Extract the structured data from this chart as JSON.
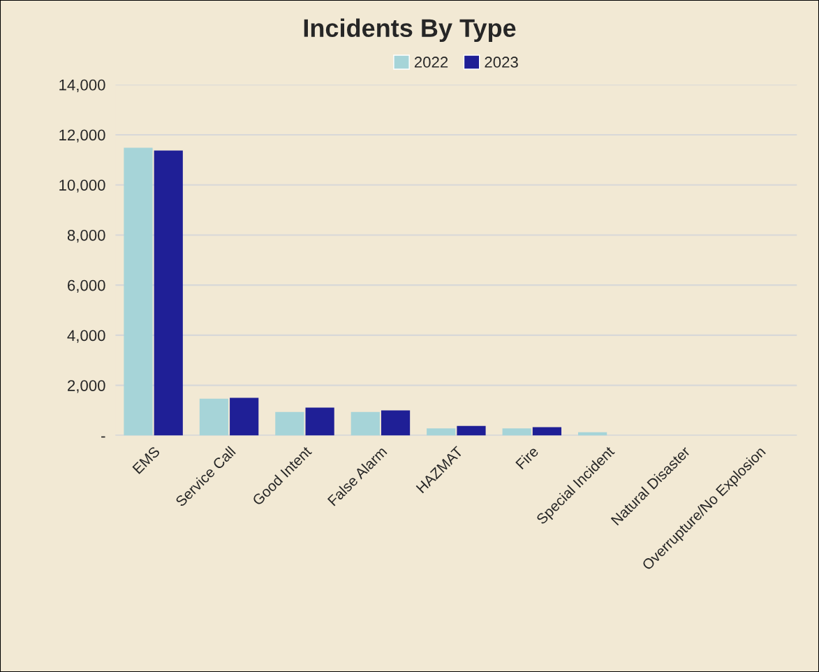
{
  "chart_data": {
    "type": "bar",
    "title": "Incidents By Type",
    "categories": [
      "EMS",
      "Service Call",
      "Good Intent",
      "False Alarm",
      "HAZMAT",
      "Fire",
      "Special Incident",
      "Natural Disaster",
      "Overrupture/No Explosion"
    ],
    "series": [
      {
        "name": "2022",
        "color": "#a6d4d8",
        "values": [
          11480,
          1470,
          940,
          940,
          280,
          280,
          130,
          0,
          0
        ]
      },
      {
        "name": "2023",
        "color": "#1f1f96",
        "values": [
          11370,
          1500,
          1110,
          1000,
          380,
          330,
          0,
          0,
          0
        ]
      }
    ],
    "ylim": [
      0,
      14000
    ],
    "yticks": [
      {
        "value": 0,
        "label": "-"
      },
      {
        "value": 2000,
        "label": "2,000"
      },
      {
        "value": 4000,
        "label": "4,000"
      },
      {
        "value": 6000,
        "label": "6,000"
      },
      {
        "value": 8000,
        "label": "8,000"
      },
      {
        "value": 10000,
        "label": "10,000"
      },
      {
        "value": 12000,
        "label": "12,000"
      },
      {
        "value": 14000,
        "label": "14,000"
      }
    ],
    "grid": "y",
    "legend": "top"
  }
}
